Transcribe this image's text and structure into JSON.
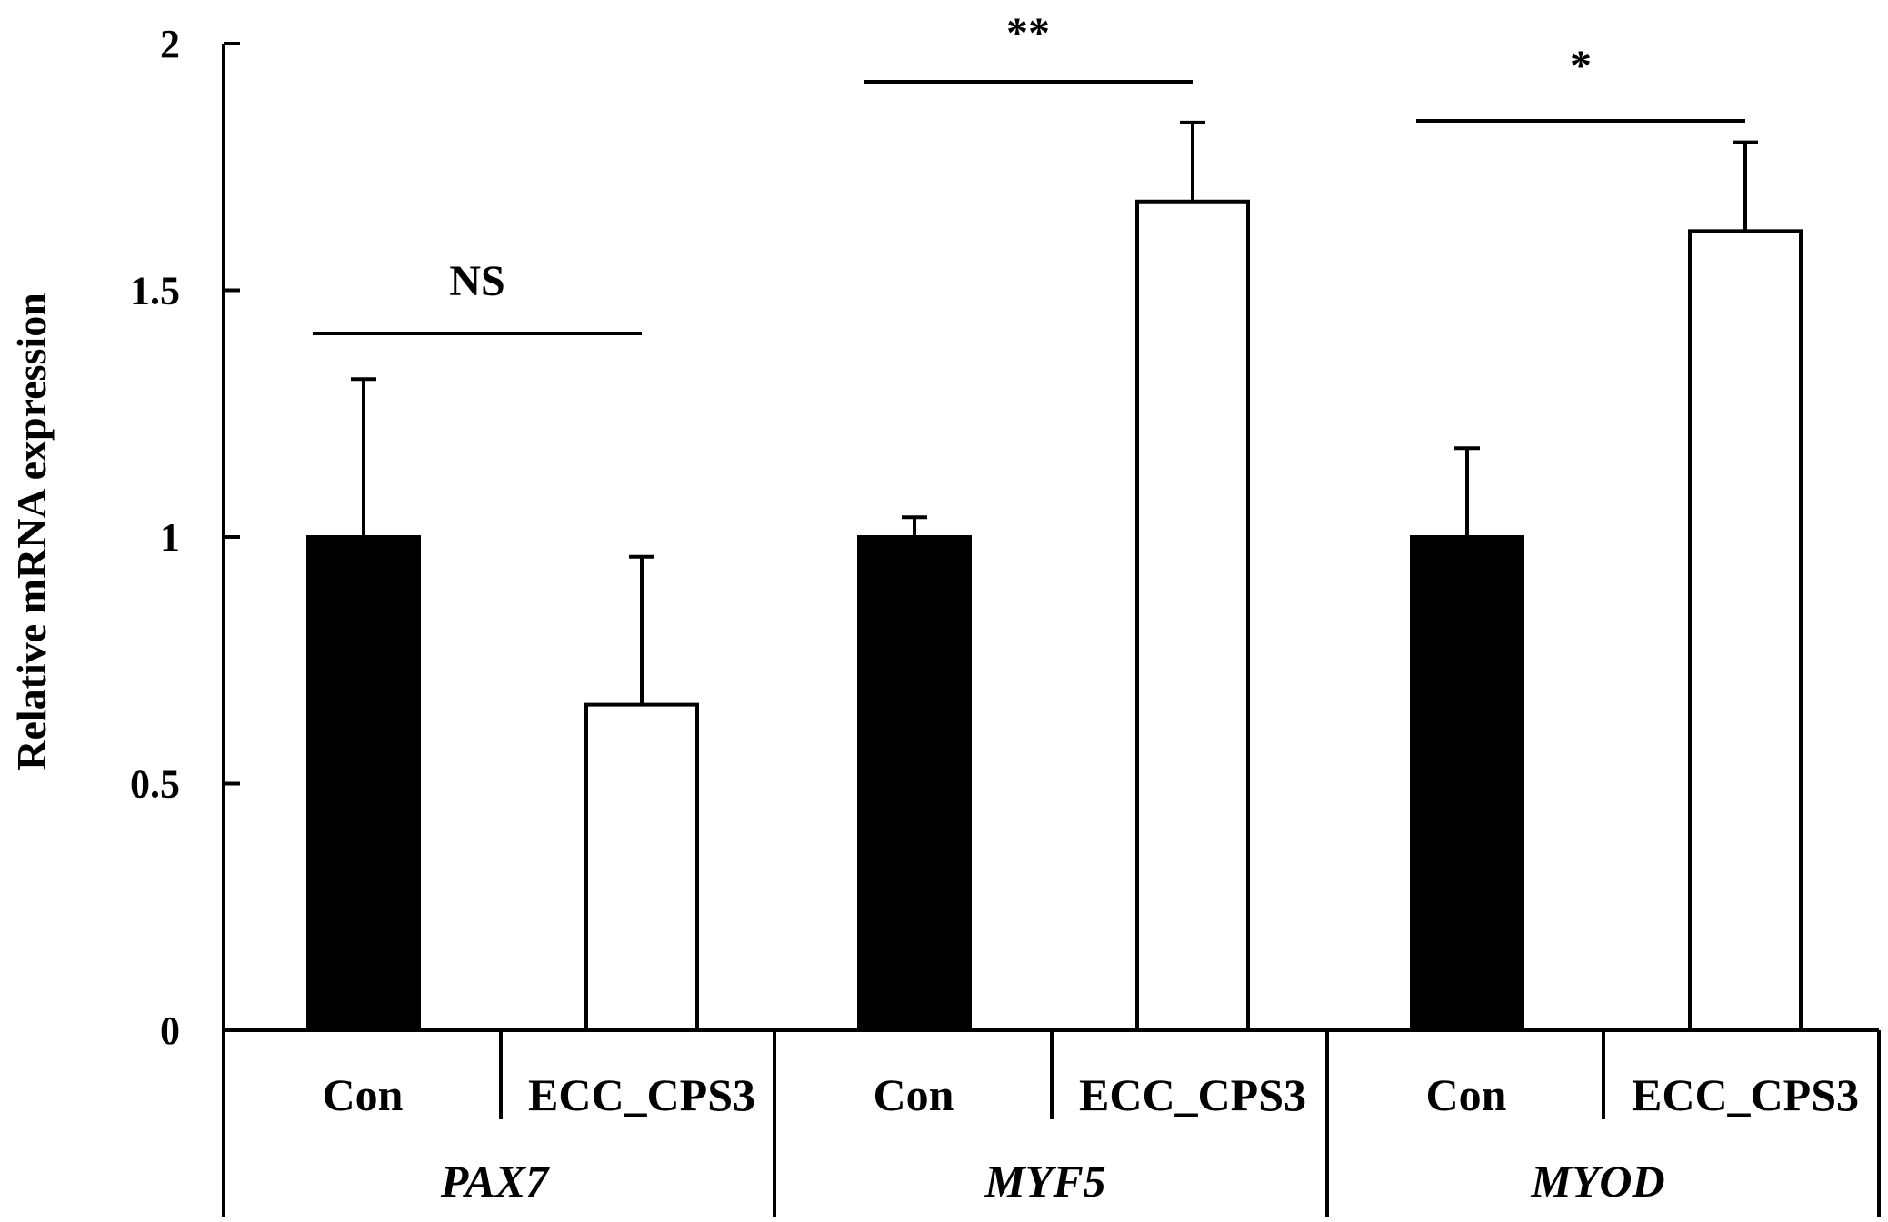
{
  "chart_data": {
    "type": "bar",
    "title": "",
    "xlabel": "",
    "ylabel": "Relative mRNA expression",
    "ylim": [
      0,
      2
    ],
    "yticks": [
      0,
      0.5,
      1,
      1.5,
      2
    ],
    "ytick_labels": [
      "0",
      "0.5",
      "1",
      "1.5",
      "2"
    ],
    "colors": {
      "Con": "#000000",
      "ECC_CPS3": "#ffffff",
      "outline": "#000000"
    },
    "groups": [
      {
        "gene": "PAX7",
        "significance": "NS",
        "bars": [
          {
            "category": "Con",
            "value": 1.0,
            "error": 0.32
          },
          {
            "category": "ECC_CPS3",
            "value": 0.66,
            "error": 0.3
          }
        ]
      },
      {
        "gene": "MYF5",
        "significance": "**",
        "bars": [
          {
            "category": "Con",
            "value": 1.0,
            "error": 0.04
          },
          {
            "category": "ECC_CPS3",
            "value": 1.68,
            "error": 0.16
          }
        ]
      },
      {
        "gene": "MYOD",
        "significance": "*",
        "bars": [
          {
            "category": "Con",
            "value": 1.0,
            "error": 0.18
          },
          {
            "category": "ECC_CPS3",
            "value": 1.62,
            "error": 0.18
          }
        ]
      }
    ]
  }
}
